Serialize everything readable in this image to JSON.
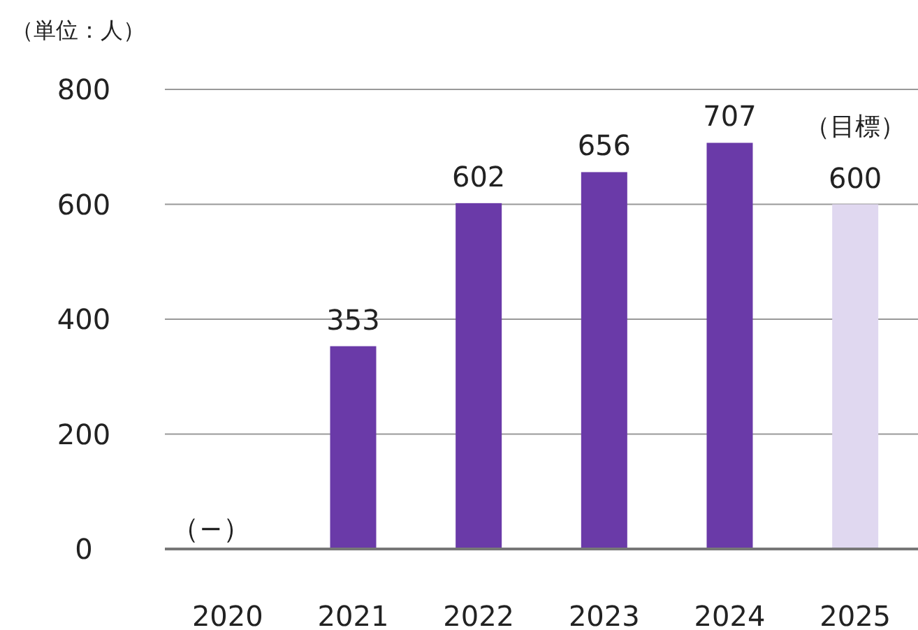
{
  "chart_data": {
    "type": "bar",
    "ylabel": "（単位：人）",
    "categories": [
      "2020",
      "2021",
      "2022",
      "2023",
      "2024",
      "2025"
    ],
    "values": [
      null,
      353,
      602,
      656,
      707,
      600
    ],
    "colors": [
      "#6a3aa8",
      "#6a3aa8",
      "#6a3aa8",
      "#6a3aa8",
      "#6a3aa8",
      "#e0d8f0"
    ],
    "value_labels": [
      "（−）",
      "353",
      "602",
      "656",
      "707",
      "600"
    ],
    "annotations": [
      {
        "text": "（目標）",
        "x": "2025",
        "y": 600
      }
    ],
    "ylim": [
      0,
      800
    ],
    "yticks": [
      0,
      200,
      400,
      600,
      800
    ],
    "grid": "y"
  }
}
